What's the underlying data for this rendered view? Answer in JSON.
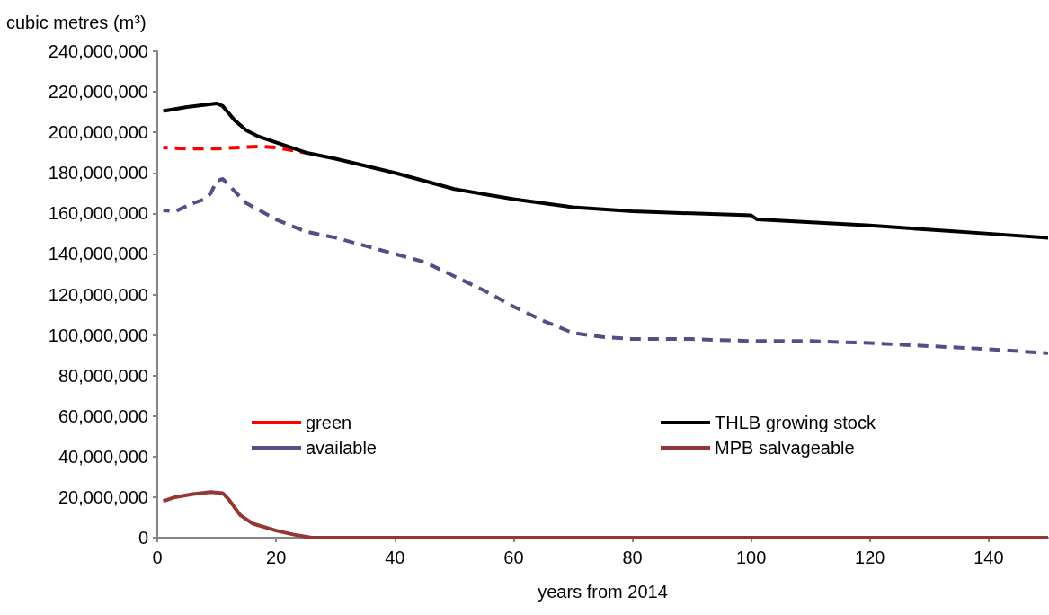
{
  "chart_data": {
    "type": "line",
    "ylabel": "cubic metres (m³)",
    "xlabel": "years from 2014",
    "xlim": [
      0,
      150
    ],
    "xticks": [
      0,
      20,
      40,
      60,
      80,
      100,
      120,
      140
    ],
    "ylim": [
      0,
      240000000
    ],
    "yticks": [
      0,
      {
        "value": 20000000,
        "label": "20,000,000"
      },
      {
        "value": 40000000,
        "label": "40,000,000"
      },
      {
        "value": 60000000,
        "label": "60,000,000"
      },
      {
        "value": 80000000,
        "label": "80,000,000"
      },
      {
        "value": 100000000,
        "label": "100,000,000"
      },
      {
        "value": 120000000,
        "label": "120,000,000"
      },
      {
        "value": 140000000,
        "label": "140,000,000"
      },
      {
        "value": 160000000,
        "label": "160,000,000"
      },
      {
        "value": 180000000,
        "label": "180,000,000"
      },
      {
        "value": 200000000,
        "label": "200,000,000"
      },
      {
        "value": 220000000,
        "label": "220,000,000"
      },
      {
        "value": 240000000,
        "label": "240,000,000"
      }
    ],
    "grid": false,
    "legend": "bottom",
    "marker": "none",
    "series": [
      {
        "name": "green",
        "color": "#ff0000",
        "line_style": "dashed",
        "x": [
          1,
          5,
          10,
          17,
          20,
          23,
          25
        ],
        "values": [
          192500000,
          192000000,
          192000000,
          193000000,
          192500000,
          191000000,
          190000000
        ]
      },
      {
        "name": "THLB growing stock",
        "color": "#000000",
        "line_style": "solid",
        "x": [
          1,
          5,
          10,
          11,
          13,
          15,
          17,
          20,
          25,
          30,
          40,
          50,
          60,
          70,
          80,
          90,
          100,
          101,
          120,
          140,
          150
        ],
        "values": [
          210500000,
          212500000,
          214300000,
          213000000,
          206000000,
          201000000,
          198000000,
          195000000,
          190000000,
          187000000,
          180000000,
          172000000,
          167000000,
          163000000,
          161000000,
          160000000,
          159000000,
          157000000,
          154000000,
          150000000,
          148000000
        ]
      },
      {
        "name": "available",
        "color": "#5b4a86",
        "line_style": "dashed",
        "x": [
          1,
          3,
          6,
          8,
          9,
          10,
          11,
          12,
          15,
          20,
          25,
          30,
          35,
          40,
          45,
          50,
          55,
          60,
          65,
          70,
          75,
          80,
          90,
          100,
          110,
          120,
          130,
          140,
          150
        ],
        "values": [
          161500000,
          161000000,
          165000000,
          167000000,
          170000000,
          176000000,
          177000000,
          174000000,
          165000000,
          157000000,
          151000000,
          148000000,
          144000000,
          140000000,
          136000000,
          129000000,
          122000000,
          114000000,
          107000000,
          101000000,
          99000000,
          98000000,
          98000000,
          97000000,
          97000000,
          96000000,
          94500000,
          93000000,
          91000000
        ]
      },
      {
        "name": "MPB salvageable",
        "color": "#943634",
        "line_style": "solid",
        "x": [
          1,
          3,
          6,
          9,
          11,
          12,
          14,
          16,
          20,
          23,
          26,
          150
        ],
        "values": [
          18000000,
          20000000,
          21500000,
          22500000,
          22000000,
          19000000,
          11000000,
          7000000,
          3500000,
          1500000,
          0,
          0
        ]
      }
    ]
  }
}
